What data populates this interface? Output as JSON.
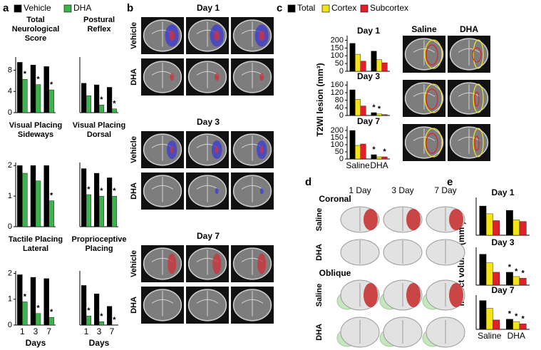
{
  "panels": {
    "a": {
      "label": "a",
      "legend": [
        {
          "name": "Vehicle",
          "color": "#000000"
        },
        {
          "name": "DHA",
          "color": "#3cb44b"
        }
      ]
    },
    "b": {
      "label": "b",
      "sections": [
        {
          "title": "Day 1",
          "rows": [
            "Vehicle",
            "DHA"
          ]
        },
        {
          "title": "Day 3",
          "rows": [
            "Vehicle",
            "DHA"
          ]
        },
        {
          "title": "Day 7",
          "rows": [
            "Vehicle",
            "DHA"
          ]
        }
      ]
    },
    "c": {
      "label": "c",
      "legend": [
        {
          "name": "Total",
          "color": "#000000"
        },
        {
          "name": "Cortex",
          "color": "#f5e31a"
        },
        {
          "name": "Subcortex",
          "color": "#e3202a"
        }
      ],
      "ylabel": "T2WI lesion (mm³)",
      "image_headers": [
        "Saline",
        "DHA"
      ]
    },
    "d": {
      "label": "d",
      "columns": [
        "1 Day",
        "3 Day",
        "7 Day"
      ],
      "sections": [
        {
          "title": "Coronal",
          "rows": [
            "Saline",
            "DHA"
          ]
        },
        {
          "title": "Oblique",
          "rows": [
            "Saline",
            "DHA"
          ]
        }
      ]
    },
    "e": {
      "label": "e",
      "ylabel": "Infarct volume (mm³)"
    }
  },
  "chart_data": [
    {
      "type": "bar",
      "title": "Total Neurological Score",
      "categories": [
        null,
        null,
        null
      ],
      "ylim": [
        0,
        10.5
      ],
      "yticks": [
        0,
        4,
        8
      ],
      "series": [
        {
          "color": "#000000",
          "values": [
            9.5,
            9.0,
            8.7
          ]
        },
        {
          "color": "#3cb44b",
          "values": [
            6.3,
            5.3,
            4.3
          ],
          "annotations": [
            "*",
            "*",
            "*"
          ]
        }
      ]
    },
    {
      "type": "bar",
      "title": "Postural Reflex",
      "categories": [
        null,
        null,
        null
      ],
      "ylim": [
        0,
        1.8
      ],
      "series": [
        {
          "color": "#000000",
          "values": [
            0.95,
            0.9,
            0.82
          ]
        },
        {
          "color": "#3cb44b",
          "values": [
            0.55,
            0.25,
            0.12
          ],
          "annotations": [
            null,
            "*",
            "*"
          ]
        }
      ]
    },
    {
      "type": "bar",
      "title": "Visual Placing Sideways",
      "categories": [
        null,
        null,
        null
      ],
      "ylim": [
        0,
        2.1
      ],
      "yticks": [
        0,
        1,
        2
      ],
      "series": [
        {
          "color": "#000000",
          "values": [
            2.0,
            2.0,
            2.0
          ]
        },
        {
          "color": "#3cb44b",
          "values": [
            1.75,
            1.5,
            0.85
          ],
          "annotations": [
            null,
            null,
            "*"
          ]
        }
      ]
    },
    {
      "type": "bar",
      "title": "Visual Placing Dorsal",
      "categories": [
        null,
        null,
        null
      ],
      "ylim": [
        0,
        2.1
      ],
      "series": [
        {
          "color": "#000000",
          "values": [
            1.9,
            1.75,
            1.6
          ]
        },
        {
          "color": "#3cb44b",
          "values": [
            1.05,
            1.0,
            1.0
          ],
          "annotations": [
            "*",
            "*",
            "*"
          ]
        }
      ]
    },
    {
      "type": "bar",
      "title": "Tactile Placing Lateral",
      "categories": [
        "1",
        "3",
        "7"
      ],
      "xlabel": "Days",
      "ylim": [
        0,
        2.1
      ],
      "yticks": [
        0,
        1,
        2
      ],
      "series": [
        {
          "color": "#000000",
          "values": [
            1.95,
            1.85,
            1.8
          ]
        },
        {
          "color": "#3cb44b",
          "values": [
            0.9,
            0.45,
            0.3
          ],
          "annotations": [
            "*",
            "*",
            "*"
          ]
        }
      ]
    },
    {
      "type": "bar",
      "title": "Proprioceptive Placing",
      "categories": [
        "1",
        "3",
        "7"
      ],
      "xlabel": "Days",
      "ylim": [
        0,
        1.3
      ],
      "series": [
        {
          "color": "#000000",
          "values": [
            0.95,
            0.75,
            0.45
          ]
        },
        {
          "color": "#3cb44b",
          "values": [
            0.22,
            0.08,
            0
          ],
          "annotations": [
            "*",
            "*",
            "*"
          ]
        }
      ]
    },
    {
      "type": "bar",
      "title": "Day 1",
      "categories": [
        null,
        null
      ],
      "ylim": [
        0,
        230
      ],
      "yticks": [
        0,
        50,
        100,
        150,
        200
      ],
      "series": [
        {
          "color": "#000000",
          "values": [
            180,
            130
          ]
        },
        {
          "color": "#f5e31a",
          "values": [
            110,
            75
          ]
        },
        {
          "color": "#e3202a",
          "values": [
            65,
            55
          ]
        }
      ]
    },
    {
      "type": "bar",
      "title": "Day 3",
      "categories": [
        null,
        null
      ],
      "ylim": [
        0,
        180
      ],
      "yticks": [
        0,
        40,
        80,
        120,
        160
      ],
      "series": [
        {
          "color": "#000000",
          "values": [
            135,
            15
          ],
          "annotations": [
            null,
            "*"
          ]
        },
        {
          "color": "#f5e31a",
          "values": [
            85,
            8
          ],
          "annotations": [
            null,
            "*"
          ]
        },
        {
          "color": "#e3202a",
          "values": [
            50,
            5
          ]
        }
      ]
    },
    {
      "type": "bar",
      "title": "Day 7",
      "categories": [
        "Saline",
        "DHA"
      ],
      "ylim": [
        0,
        230
      ],
      "yticks": [
        0,
        50,
        100,
        150,
        200
      ],
      "series": [
        {
          "color": "#000000",
          "values": [
            200,
            30
          ],
          "annotations": [
            null,
            "*"
          ]
        },
        {
          "color": "#f5e31a",
          "values": [
            95,
            15
          ]
        },
        {
          "color": "#e3202a",
          "values": [
            105,
            15
          ],
          "annotations": [
            null,
            "*"
          ]
        }
      ]
    },
    {
      "type": "bar",
      "title": "Day 1",
      "categories": [
        null,
        null
      ],
      "ylim": [
        0,
        220
      ],
      "series": [
        {
          "color": "#000000",
          "values": [
            170,
            145
          ]
        },
        {
          "color": "#f5e31a",
          "values": [
            125,
            90
          ]
        },
        {
          "color": "#e3202a",
          "values": [
            85,
            80
          ]
        }
      ]
    },
    {
      "type": "bar",
      "title": "Day 3",
      "categories": [
        null,
        null
      ],
      "ylim": [
        0,
        220
      ],
      "series": [
        {
          "color": "#000000",
          "values": [
            180,
            75
          ],
          "annotations": [
            null,
            "*"
          ]
        },
        {
          "color": "#f5e31a",
          "values": [
            130,
            50
          ],
          "annotations": [
            null,
            "*"
          ]
        },
        {
          "color": "#e3202a",
          "values": [
            75,
            40
          ],
          "annotations": [
            null,
            "*"
          ]
        }
      ]
    },
    {
      "type": "bar",
      "title": "Day 7",
      "categories": [
        "Saline",
        "DHA"
      ],
      "ylim": [
        0,
        220
      ],
      "series": [
        {
          "color": "#000000",
          "values": [
            185,
            65
          ],
          "annotations": [
            null,
            "*"
          ]
        },
        {
          "color": "#f5e31a",
          "values": [
            135,
            50
          ],
          "annotations": [
            null,
            "*"
          ]
        },
        {
          "color": "#e3202a",
          "values": [
            60,
            35
          ],
          "annotations": [
            null,
            "*"
          ]
        }
      ]
    }
  ]
}
